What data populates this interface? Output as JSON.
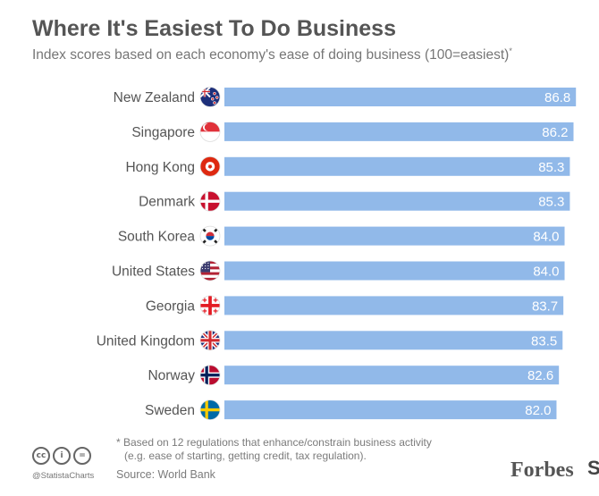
{
  "header": {
    "title": "Where It's Easiest To Do Business",
    "subtitle": "Index scores based on each economy's ease of doing business (100=easiest)",
    "subtitle_mark": "*"
  },
  "chart_data": {
    "type": "bar",
    "orientation": "horizontal",
    "title": "Where It's Easiest To Do Business",
    "subtitle": "Index scores based on each economy's ease of doing business (100=easiest)*",
    "categories": [
      "New Zealand",
      "Singapore",
      "Hong Kong",
      "Denmark",
      "South Korea",
      "United States",
      "Georgia",
      "United Kingdom",
      "Norway",
      "Sweden"
    ],
    "values": [
      86.8,
      86.2,
      85.3,
      85.3,
      84.0,
      84.0,
      83.7,
      83.5,
      82.6,
      82.0
    ],
    "value_labels": [
      "86.8",
      "86.2",
      "85.3",
      "85.3",
      "84.0",
      "84.0",
      "83.7",
      "83.5",
      "82.6",
      "82.0"
    ],
    "flags": [
      "new-zealand-flag-icon",
      "singapore-flag-icon",
      "hong-kong-flag-icon",
      "denmark-flag-icon",
      "south-korea-flag-icon",
      "united-states-flag-icon",
      "georgia-flag-icon",
      "united-kingdom-flag-icon",
      "norway-flag-icon",
      "sweden-flag-icon"
    ],
    "xlim": [
      0,
      100
    ],
    "xlabel": "",
    "ylabel": "",
    "grid": false,
    "bar_color": "#91b9e9"
  },
  "footer": {
    "footnote_line1": "* Based on 12 regulations that enhance/constrain business activity",
    "footnote_line2": "(e.g. ease of starting, getting credit, tax regulation).",
    "source": "Source: World Bank",
    "credit": "@StatistaCharts",
    "cc_icons": [
      "cc",
      "i",
      "="
    ],
    "logo": "Forbes",
    "logo_partial": "S"
  }
}
